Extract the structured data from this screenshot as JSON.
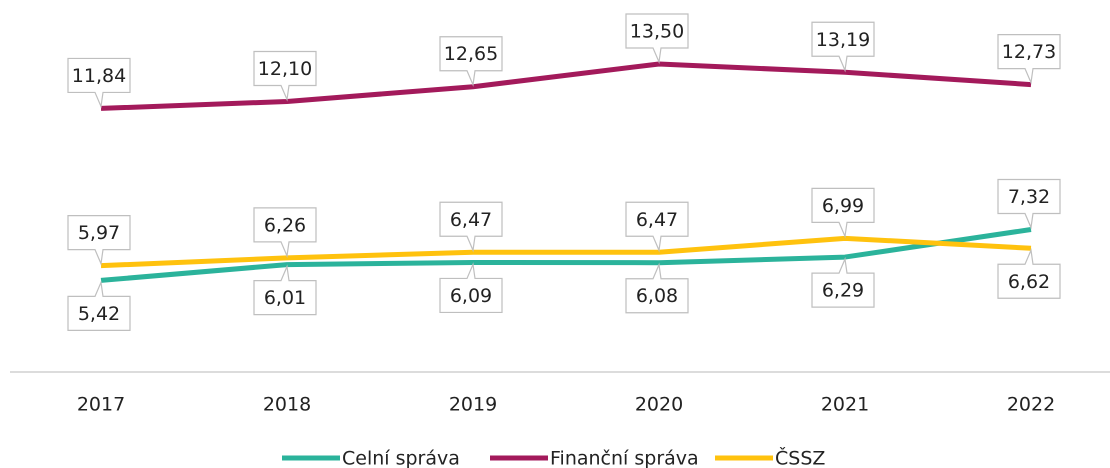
{
  "chart_data": {
    "type": "line",
    "categories": [
      "2017",
      "2018",
      "2019",
      "2020",
      "2021",
      "2022"
    ],
    "series": [
      {
        "name": "Celní správa",
        "color": "#2bb39b",
        "values": [
          5.42,
          6.01,
          6.09,
          6.08,
          6.29,
          7.32
        ],
        "value_labels": [
          "5,42",
          "6,01",
          "6,09",
          "6,08",
          "6,29",
          "7,32"
        ]
      },
      {
        "name": "Finanční správa",
        "color": "#a31a5b",
        "values": [
          11.84,
          12.1,
          12.65,
          13.5,
          13.19,
          12.73
        ],
        "value_labels": [
          "11,84",
          "12,10",
          "12,65",
          "13,50",
          "13,19",
          "12,73"
        ]
      },
      {
        "name": "ČSSZ",
        "color": "#ffc20e",
        "values": [
          5.97,
          6.26,
          6.47,
          6.47,
          6.99,
          6.62
        ],
        "value_labels": [
          "5,97",
          "6,26",
          "6,47",
          "6,47",
          "6,99",
          "6,62"
        ]
      }
    ],
    "ylim": [
      2,
      16
    ],
    "legend": "bottom"
  }
}
